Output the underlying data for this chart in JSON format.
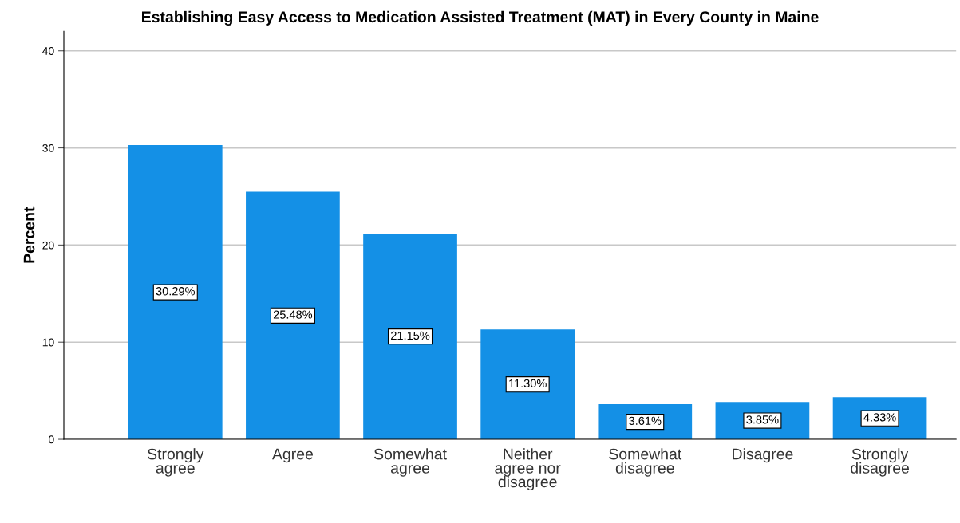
{
  "chart_data": {
    "type": "bar",
    "title": "Establishing Easy Access to Medication Assisted Treatment (MAT) in Every County in Maine",
    "ylabel": "Percent",
    "categories": [
      "Strongly agree",
      "Agree",
      "Somewhat agree",
      "Neither agree nor disagree",
      "Somewhat disagree",
      "Disagree",
      "Strongly disagree"
    ],
    "values": [
      30.29,
      25.48,
      21.15,
      11.3,
      3.61,
      3.85,
      4.33
    ],
    "value_labels": [
      "30.29%",
      "25.48%",
      "21.15%",
      "11.30%",
      "3.61%",
      "3.85%",
      "4.33%"
    ],
    "color": "#1490e6",
    "ylim": [
      0,
      42
    ],
    "yticks": [
      0,
      10,
      20,
      30,
      40
    ],
    "grid": "y"
  }
}
